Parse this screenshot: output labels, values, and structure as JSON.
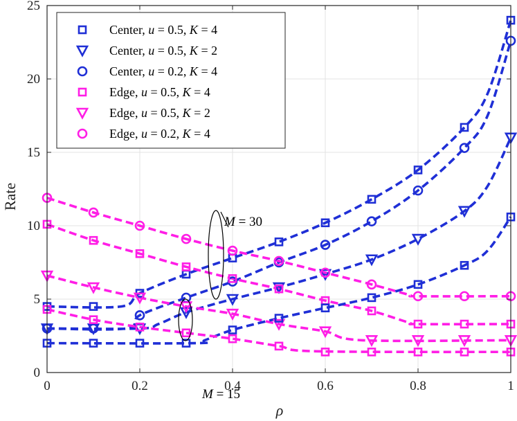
{
  "chart_data": {
    "type": "line",
    "title": "",
    "xlabel": "ρ",
    "ylabel": "Rate",
    "xlim": [
      0,
      1
    ],
    "ylim": [
      0,
      25
    ],
    "grid": true,
    "legend_position": "top-left",
    "x_ticks": [
      "0",
      "0.2",
      "0.4",
      "0.6",
      "0.8",
      "1"
    ],
    "y_ticks": [
      "0",
      "5",
      "10",
      "15",
      "20",
      "25"
    ],
    "annotations": [
      "M = 30",
      "M = 15"
    ],
    "x": [
      0,
      0.1,
      0.2,
      0.3,
      0.4,
      0.5,
      0.6,
      0.7,
      0.8,
      0.9,
      1.0
    ],
    "series": [
      {
        "name": "Center, u = 0.5, K = 4",
        "color": "#1f2fd6",
        "marker": "square",
        "style": "dashed",
        "values": [
          4.5,
          4.5,
          5.4,
          6.7,
          7.8,
          8.9,
          10.2,
          11.8,
          13.8,
          16.7,
          24.0
        ],
        "curve": [
          [
            0,
            4.5
          ],
          [
            0.16,
            4.5
          ],
          [
            0.2,
            5.4
          ],
          [
            0.3,
            6.7
          ],
          [
            0.4,
            7.8
          ],
          [
            0.5,
            8.9
          ],
          [
            0.6,
            10.2
          ],
          [
            0.7,
            11.8
          ],
          [
            0.8,
            13.8
          ],
          [
            0.9,
            16.7
          ],
          [
            0.95,
            19.0
          ],
          [
            1.0,
            24.0
          ]
        ]
      },
      {
        "name": "Center, u = 0.5, K = 2",
        "color": "#1f2fd6",
        "marker": "triangle-down",
        "style": "dashed",
        "values": [
          3.0,
          3.0,
          3.0,
          4.1,
          5.0,
          5.8,
          6.7,
          7.7,
          9.1,
          11.0,
          16.0
        ],
        "curve": [
          [
            0,
            3.0
          ],
          [
            0.2,
            3.0
          ],
          [
            0.24,
            3.3
          ],
          [
            0.3,
            4.1
          ],
          [
            0.4,
            5.0
          ],
          [
            0.5,
            5.8
          ],
          [
            0.6,
            6.7
          ],
          [
            0.7,
            7.7
          ],
          [
            0.8,
            9.1
          ],
          [
            0.9,
            11.0
          ],
          [
            0.95,
            12.7
          ],
          [
            1.0,
            16.0
          ]
        ]
      },
      {
        "name": "Center, u = 0.2, K = 4",
        "color": "#1f2fd6",
        "marker": "circle",
        "style": "dashed",
        "values": [
          3.0,
          3.0,
          3.9,
          5.1,
          6.2,
          7.5,
          8.7,
          10.3,
          12.4,
          15.3,
          22.6
        ],
        "curve": [
          [
            0,
            3.0
          ],
          [
            0.17,
            3.0
          ],
          [
            0.2,
            3.9
          ],
          [
            0.3,
            5.1
          ],
          [
            0.4,
            6.2
          ],
          [
            0.5,
            7.5
          ],
          [
            0.6,
            8.7
          ],
          [
            0.7,
            10.3
          ],
          [
            0.8,
            12.4
          ],
          [
            0.9,
            15.3
          ],
          [
            0.95,
            17.5
          ],
          [
            1.0,
            22.6
          ]
        ]
      },
      {
        "name": "Edge, u = 0.5, K = 4",
        "color": "#ff1ee6",
        "marker": "square",
        "style": "dashed",
        "values": [
          10.1,
          9.0,
          8.1,
          7.2,
          6.4,
          5.7,
          4.9,
          4.2,
          3.3,
          3.3,
          3.3
        ],
        "curve": [
          [
            0,
            10.1
          ],
          [
            0.1,
            9.0
          ],
          [
            0.2,
            8.1
          ],
          [
            0.3,
            7.2
          ],
          [
            0.4,
            6.4
          ],
          [
            0.5,
            5.7
          ],
          [
            0.6,
            4.9
          ],
          [
            0.7,
            4.2
          ],
          [
            0.78,
            3.4
          ],
          [
            0.8,
            3.3
          ],
          [
            1.0,
            3.3
          ]
        ]
      },
      {
        "name": "Edge, u = 0.5, K = 2",
        "color": "#ff1ee6",
        "marker": "triangle-down",
        "style": "dashed",
        "values": [
          6.6,
          5.8,
          5.1,
          4.5,
          4.0,
          3.3,
          2.8,
          2.2,
          2.2,
          2.2,
          2.2
        ],
        "curve": [
          [
            0,
            6.6
          ],
          [
            0.1,
            5.8
          ],
          [
            0.2,
            5.1
          ],
          [
            0.3,
            4.5
          ],
          [
            0.4,
            4.0
          ],
          [
            0.5,
            3.3
          ],
          [
            0.6,
            2.8
          ],
          [
            0.68,
            2.2
          ],
          [
            1.0,
            2.2
          ]
        ]
      },
      {
        "name": "Edge, u = 0.2, K = 4",
        "color": "#ff1ee6",
        "marker": "circle",
        "style": "dashed",
        "values": [
          11.9,
          10.9,
          10.0,
          9.1,
          8.3,
          7.6,
          6.8,
          6.0,
          5.2,
          5.2,
          5.2
        ],
        "curve": [
          [
            0,
            11.9
          ],
          [
            0.1,
            10.9
          ],
          [
            0.2,
            10.0
          ],
          [
            0.3,
            9.1
          ],
          [
            0.4,
            8.3
          ],
          [
            0.5,
            7.6
          ],
          [
            0.6,
            6.8
          ],
          [
            0.7,
            6.0
          ],
          [
            0.78,
            5.3
          ],
          [
            0.8,
            5.2
          ],
          [
            1.0,
            5.2
          ]
        ]
      },
      {
        "name": "Center, u = 0.5, K = 4 (M = 15)",
        "color": "#1f2fd6",
        "marker": "square",
        "style": "dashed",
        "values": [
          2.0,
          2.0,
          2.0,
          2.0,
          2.9,
          3.7,
          4.4,
          5.1,
          6.0,
          7.3,
          10.6
        ],
        "curve": [
          [
            0,
            2.0
          ],
          [
            0.32,
            2.0
          ],
          [
            0.34,
            2.2
          ],
          [
            0.4,
            2.9
          ],
          [
            0.5,
            3.7
          ],
          [
            0.6,
            4.4
          ],
          [
            0.7,
            5.1
          ],
          [
            0.8,
            6.0
          ],
          [
            0.9,
            7.3
          ],
          [
            0.95,
            8.3
          ],
          [
            1.0,
            10.6
          ]
        ]
      },
      {
        "name": "Edge, u = 0.5, K = 4 (M = 15)",
        "color": "#ff1ee6",
        "marker": "square",
        "style": "dashed",
        "values": [
          4.3,
          3.6,
          3.1,
          2.7,
          2.3,
          1.8,
          1.4,
          1.4,
          1.4,
          1.4,
          1.4
        ],
        "curve": [
          [
            0,
            4.3
          ],
          [
            0.1,
            3.6
          ],
          [
            0.2,
            3.1
          ],
          [
            0.3,
            2.7
          ],
          [
            0.4,
            2.3
          ],
          [
            0.5,
            1.8
          ],
          [
            0.58,
            1.45
          ],
          [
            1.0,
            1.4
          ]
        ]
      }
    ]
  },
  "legend": {
    "entries": [
      {
        "prefix": "Center,",
        "u": "0.5",
        "K": "4"
      },
      {
        "prefix": "Center,",
        "u": "0.5",
        "K": "2"
      },
      {
        "prefix": "Center,",
        "u": "0.2",
        "K": "4"
      },
      {
        "prefix": "Edge,",
        "u": "0.5",
        "K": "4"
      },
      {
        "prefix": "Edge,",
        "u": "0.5",
        "K": "2"
      },
      {
        "prefix": "Edge,",
        "u": "0.2",
        "K": "4"
      }
    ]
  }
}
